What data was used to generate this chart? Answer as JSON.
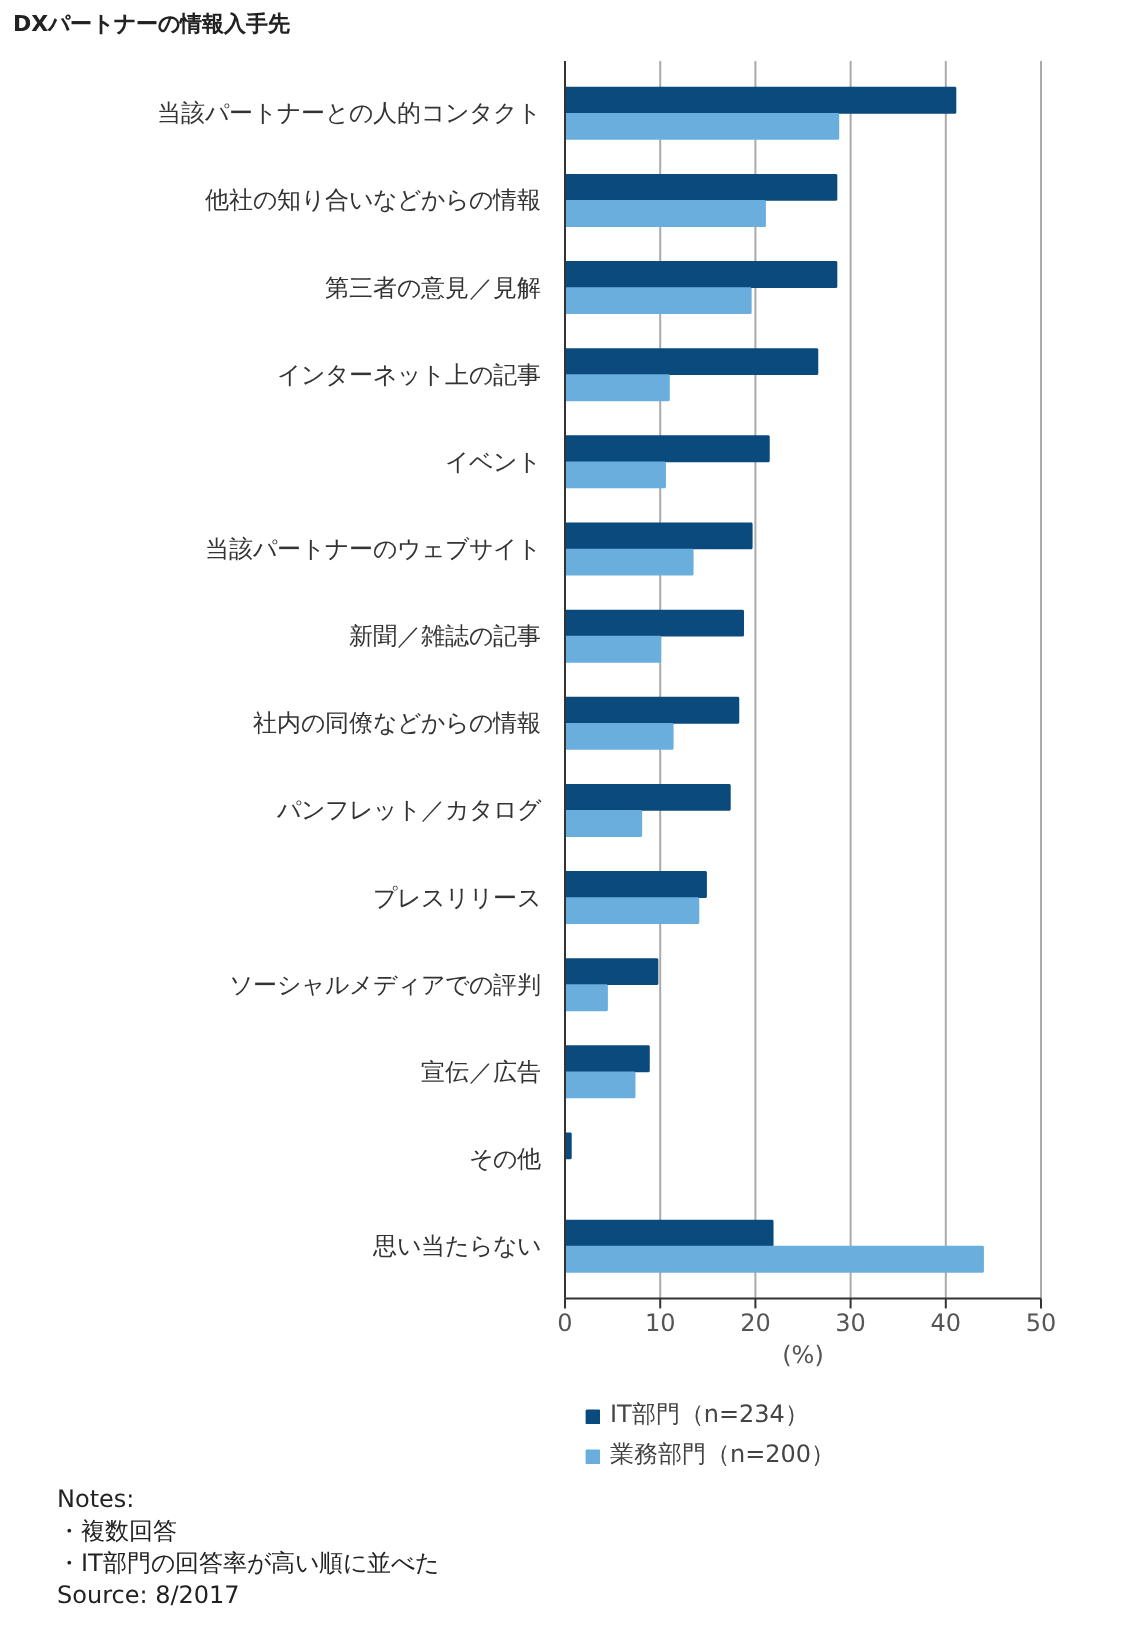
{
  "chart_data": {
    "type": "bar",
    "orientation": "horizontal",
    "title": "DXパートナーの情報入手先",
    "categories": [
      "当該パートナーとの人的コンタクト",
      "他社の知り合いなどからの情報",
      "第三者の意見／見解",
      "インターネット上の記事",
      "イベント",
      "当該パートナーのウェブサイト",
      "新聞／雑誌の記事",
      "社内の同僚などからの情報",
      "パンフレット／カタログ",
      "プレスリリース",
      "ソーシャルメディアでの評判",
      "宣伝／広告",
      "その他",
      "思い当たらない"
    ],
    "series": [
      {
        "name": "IT部門（n=234）",
        "color": "#0b4a7d",
        "values": [
          41.0,
          28.5,
          28.5,
          26.5,
          21.4,
          19.6,
          18.7,
          18.2,
          17.3,
          14.8,
          9.7,
          8.8,
          0.6,
          21.8
        ]
      },
      {
        "name": "業務部門（n=200）",
        "color": "#6aaede",
        "values": [
          28.7,
          21.0,
          19.5,
          10.9,
          10.5,
          13.4,
          10.0,
          11.3,
          8.0,
          14.0,
          4.4,
          7.3,
          0,
          43.9
        ]
      }
    ],
    "xlabel": "(%)",
    "xlim": [
      0,
      50
    ],
    "xticks": [
      0,
      10,
      20,
      30,
      40,
      50
    ],
    "grid": "x",
    "legend": "bottom",
    "annotations": [
      "Notes:",
      "・複数回答",
      "・IT部門の回答率が高い順に並べた",
      "Source: 8/2017"
    ]
  }
}
